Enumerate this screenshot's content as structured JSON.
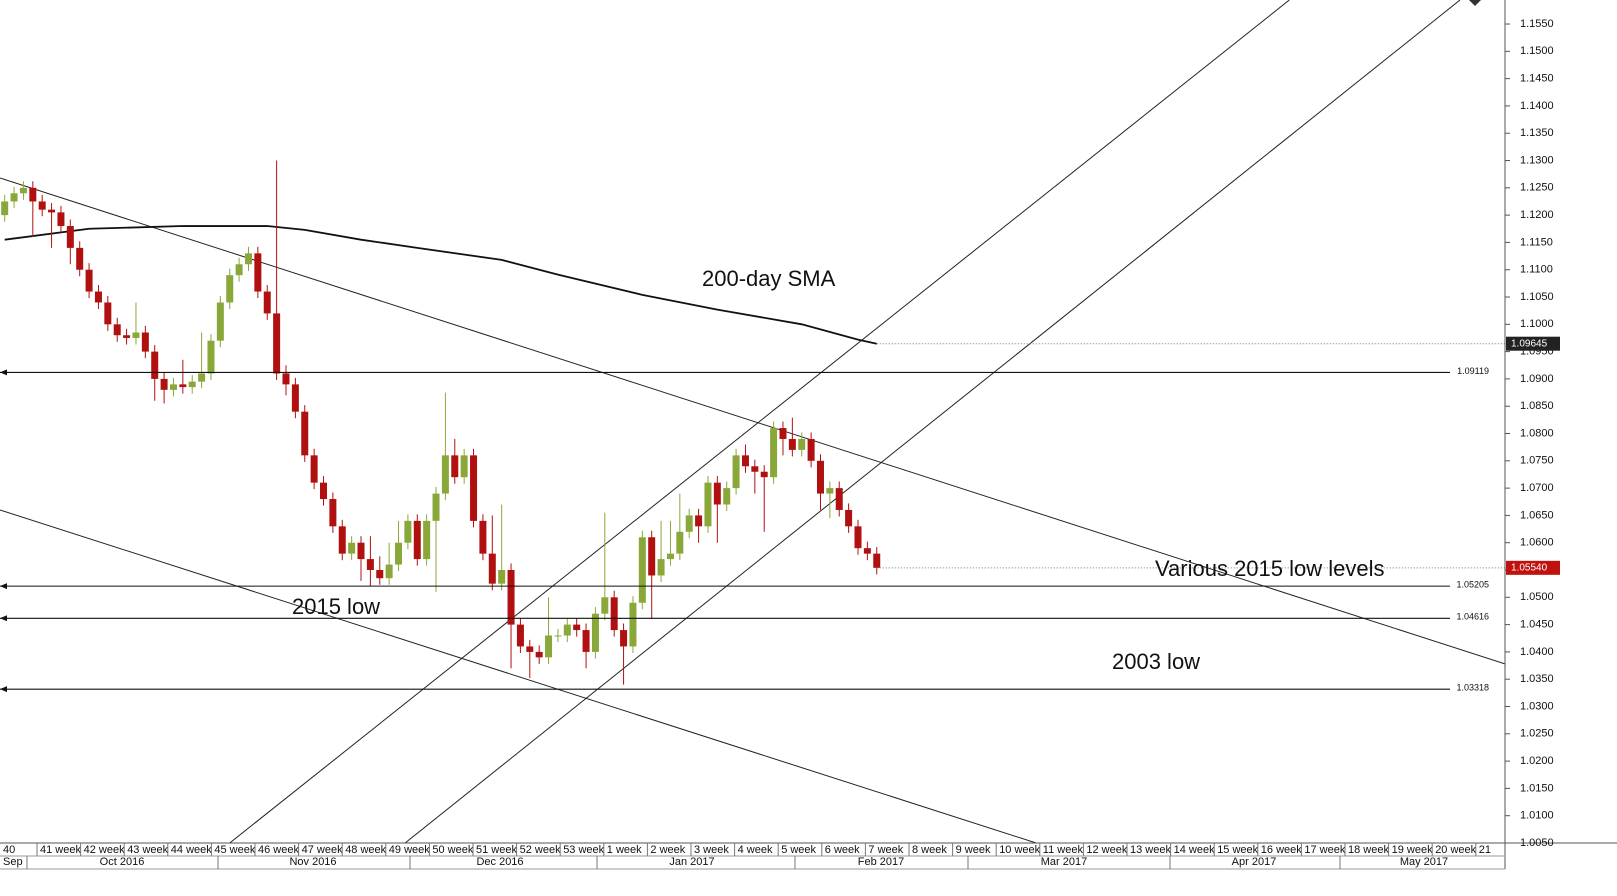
{
  "chart_data": {
    "type": "candlestick",
    "up_color": "#8aa83a",
    "down_color": "#b01010",
    "xlim": [
      -0.5,
      160
    ],
    "ylim": [
      1.005,
      1.1594
    ],
    "yticks": [
      {
        "value": 1.005,
        "label": "1.0050"
      },
      {
        "value": 1.01,
        "label": "1.0100"
      },
      {
        "value": 1.015,
        "label": "1.0150"
      },
      {
        "value": 1.02,
        "label": "1.0200"
      },
      {
        "value": 1.025,
        "label": "1.0250"
      },
      {
        "value": 1.03,
        "label": "1.0300"
      },
      {
        "value": 1.035,
        "label": "1.0350"
      },
      {
        "value": 1.04,
        "label": "1.0400"
      },
      {
        "value": 1.045,
        "label": "1.0450"
      },
      {
        "value": 1.05,
        "label": "1.0500"
      },
      {
        "value": 1.055,
        "label": "1.0550"
      },
      {
        "value": 1.06,
        "label": "1.0600"
      },
      {
        "value": 1.065,
        "label": "1.0650"
      },
      {
        "value": 1.07,
        "label": "1.0700"
      },
      {
        "value": 1.075,
        "label": "1.0750"
      },
      {
        "value": 1.08,
        "label": "1.0800"
      },
      {
        "value": 1.085,
        "label": "1.0850"
      },
      {
        "value": 1.09,
        "label": "1.0900"
      },
      {
        "value": 1.095,
        "label": "1.0950"
      },
      {
        "value": 1.1,
        "label": "1.1000"
      },
      {
        "value": 1.105,
        "label": "1.1050"
      },
      {
        "value": 1.11,
        "label": "1.1100"
      },
      {
        "value": 1.115,
        "label": "1.1150"
      },
      {
        "value": 1.12,
        "label": "1.1200"
      },
      {
        "value": 1.125,
        "label": "1.1250"
      },
      {
        "value": 1.13,
        "label": "1.1300"
      },
      {
        "value": 1.135,
        "label": "1.1350"
      },
      {
        "value": 1.14,
        "label": "1.1400"
      },
      {
        "value": 1.145,
        "label": "1.1450"
      },
      {
        "value": 1.15,
        "label": "1.1500"
      },
      {
        "value": 1.155,
        "label": "1.1550"
      }
    ],
    "open": [
      1.12,
      1.1225,
      1.124,
      1.125,
      1.1225,
      1.121,
      1.1205,
      1.118,
      1.114,
      1.11,
      1.106,
      1.104,
      1.1,
      1.098,
      1.0975,
      1.0985,
      1.095,
      1.09,
      1.088,
      1.089,
      1.0885,
      1.0895,
      1.091,
      1.097,
      1.104,
      1.109,
      1.111,
      1.113,
      1.106,
      1.102,
      1.091,
      1.089,
      1.084,
      1.076,
      1.071,
      1.068,
      1.063,
      1.058,
      1.06,
      1.057,
      1.055,
      1.0535,
      1.056,
      1.06,
      1.064,
      1.057,
      1.064,
      1.069,
      1.076,
      1.072,
      1.076,
      1.064,
      1.058,
      1.0525,
      1.055,
      1.045,
      1.041,
      1.04,
      1.039,
      1.043,
      1.043,
      1.045,
      1.044,
      1.04,
      1.047,
      1.05,
      1.044,
      1.041,
      1.049,
      1.061,
      1.054,
      1.057,
      1.058,
      1.062,
      1.065,
      1.063,
      1.071,
      1.067,
      1.07,
      1.076,
      1.074,
      1.073,
      1.072,
      1.081,
      1.079,
      1.077,
      1.079,
      1.075,
      1.069,
      1.07,
      1.066,
      1.063,
      1.059,
      1.058
    ],
    "high": [
      1.1237,
      1.1252,
      1.1262,
      1.1262,
      1.1237,
      1.1222,
      1.1217,
      1.1192,
      1.1152,
      1.1112,
      1.1072,
      1.1052,
      1.1012,
      1.0992,
      1.104,
      1.0997,
      1.0962,
      1.0912,
      1.0902,
      1.0935,
      1.0907,
      1.0985,
      1.0982,
      1.1052,
      1.1102,
      1.1122,
      1.1142,
      1.1142,
      1.1072,
      1.13,
      1.0925,
      1.0902,
      1.0852,
      1.0772,
      1.0722,
      1.0692,
      1.0642,
      1.0612,
      1.0612,
      1.0612,
      1.0575,
      1.06,
      1.064,
      1.0652,
      1.0652,
      1.0652,
      1.0702,
      1.0875,
      1.079,
      1.0772,
      1.0772,
      1.0652,
      1.065,
      1.067,
      1.0562,
      1.0462,
      1.0422,
      1.0412,
      1.05,
      1.0442,
      1.0462,
      1.0462,
      1.0452,
      1.0482,
      1.0655,
      1.0512,
      1.0452,
      1.0502,
      1.0622,
      1.0622,
      1.064,
      1.064,
      1.069,
      1.0662,
      1.0662,
      1.0722,
      1.0722,
      1.0712,
      1.0772,
      1.078,
      1.0752,
      1.0742,
      1.0822,
      1.0822,
      1.0829,
      1.0802,
      1.0802,
      1.0762,
      1.0712,
      1.0712,
      1.0672,
      1.0642,
      1.0602,
      1.0592
    ],
    "low": [
      1.1188,
      1.1213,
      1.1228,
      1.116,
      1.1198,
      1.114,
      1.1168,
      1.111,
      1.1088,
      1.1048,
      1.1028,
      1.0988,
      1.0968,
      1.0963,
      1.0963,
      1.0938,
      1.086,
      1.0855,
      1.0868,
      1.0873,
      1.0873,
      1.0883,
      1.0898,
      1.0958,
      1.1028,
      1.1078,
      1.1098,
      1.1048,
      1.1008,
      1.0898,
      1.087,
      1.0828,
      1.0748,
      1.0698,
      1.0668,
      1.0618,
      1.0568,
      1.0568,
      1.053,
      1.052,
      1.0523,
      1.0523,
      1.0548,
      1.0588,
      1.0558,
      1.0558,
      1.051,
      1.0678,
      1.0708,
      1.0708,
      1.0628,
      1.0568,
      1.0513,
      1.0513,
      1.037,
      1.0398,
      1.0352,
      1.0378,
      1.0378,
      1.0418,
      1.0418,
      1.0428,
      1.037,
      1.0388,
      1.0458,
      1.0428,
      1.034,
      1.0398,
      1.0478,
      1.046,
      1.0528,
      1.0558,
      1.0568,
      1.0608,
      1.06,
      1.0618,
      1.06,
      1.0658,
      1.0688,
      1.0728,
      1.069,
      1.062,
      1.0708,
      1.076,
      1.0758,
      1.0758,
      1.0738,
      1.066,
      1.0645,
      1.0648,
      1.0618,
      1.0578,
      1.0568,
      1.0542
    ],
    "close": [
      1.1225,
      1.124,
      1.125,
      1.1225,
      1.121,
      1.1205,
      1.118,
      1.114,
      1.11,
      1.106,
      1.104,
      1.1,
      1.098,
      1.0975,
      1.0985,
      1.095,
      1.09,
      1.088,
      1.089,
      1.0885,
      1.0895,
      1.091,
      1.097,
      1.104,
      1.109,
      1.111,
      1.113,
      1.106,
      1.102,
      1.091,
      1.089,
      1.084,
      1.076,
      1.071,
      1.068,
      1.063,
      1.058,
      1.06,
      1.057,
      1.055,
      1.0535,
      1.056,
      1.06,
      1.064,
      1.057,
      1.064,
      1.069,
      1.076,
      1.072,
      1.076,
      1.064,
      1.058,
      1.0525,
      1.055,
      1.045,
      1.041,
      1.04,
      1.039,
      1.043,
      1.043,
      1.045,
      1.044,
      1.04,
      1.047,
      1.05,
      1.044,
      1.041,
      1.049,
      1.061,
      1.054,
      1.057,
      1.058,
      1.062,
      1.065,
      1.063,
      1.071,
      1.067,
      1.07,
      1.076,
      1.074,
      1.073,
      1.072,
      1.081,
      1.079,
      1.077,
      1.079,
      1.075,
      1.069,
      1.07,
      1.066,
      1.063,
      1.059,
      1.058,
      1.0554
    ],
    "sma": {
      "color": "#111111",
      "x": [
        0,
        9,
        19,
        28,
        32,
        38,
        44,
        53,
        59,
        68,
        76,
        85,
        91,
        93
      ],
      "values": [
        1.1155,
        1.1175,
        1.118,
        1.118,
        1.1173,
        1.1155,
        1.114,
        1.1118,
        1.1091,
        1.1054,
        1.1027,
        1.1,
        1.0972,
        1.09645
      ]
    },
    "trendlines": [
      {
        "x": [
          -0.5,
          160
        ],
        "y": [
          1.1268,
          1.0378
        ]
      },
      {
        "x": [
          -0.5,
          110
        ],
        "y": [
          1.066,
          1.005
        ]
      },
      {
        "x": [
          24,
          137
        ],
        "y": [
          1.005,
          1.1594
        ]
      },
      {
        "x": [
          42.7,
          155.2
        ],
        "y": [
          1.005,
          1.1594
        ]
      }
    ],
    "levels": [
      1.09119,
      1.05205,
      1.04616,
      1.03318
    ],
    "price_tags": [
      1.09645,
      {
        "value": 1.0554,
        "label": "1.05540"
      }
    ],
    "price_tag_colors": [
      "#222222",
      "#c0100f"
    ],
    "annotations": [
      "200-day SMA",
      "Various 2015 low levels",
      "2015 low",
      "2003 low"
    ],
    "week_labels": [
      "40",
      "41 week",
      "42 week",
      "43 week",
      "44 week",
      "45 week",
      "46 week",
      "47 week",
      "48 week",
      "49 week",
      "50 week",
      "51 week",
      "52 week",
      "53 week",
      "1 week",
      "2 week",
      "3 week",
      "4 week",
      "5 week",
      "6 week",
      "7 week",
      "8 week",
      "9 week",
      "10 week",
      "11 week",
      "12 week",
      "13 week",
      "14 week",
      "15 week",
      "16 week",
      "17 week",
      "18 week",
      "19 week",
      "20 week",
      "21"
    ],
    "month_labels": [
      "Sep",
      "Oct 2016",
      "Nov 2016",
      "Dec 2016",
      "Jan 2017",
      "Feb 2017",
      "Mar 2017",
      "Apr 2017",
      "May 2017"
    ]
  }
}
